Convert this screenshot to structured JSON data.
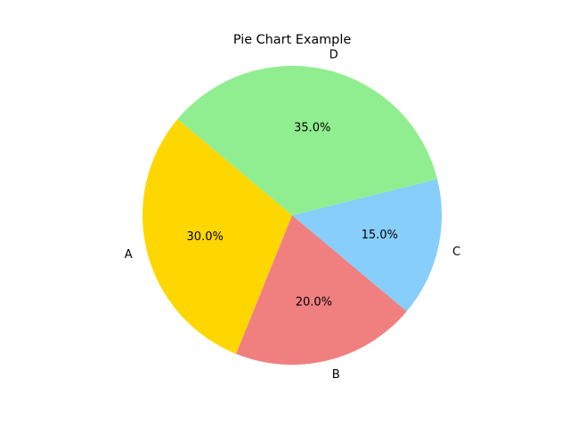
{
  "chart_data": {
    "type": "pie",
    "title": "Pie Chart Example",
    "start_angle_deg": 140,
    "counterclock": true,
    "slices": [
      {
        "label": "A",
        "value": 30.0,
        "pct_label": "30.0%",
        "color": "#ffd700"
      },
      {
        "label": "B",
        "value": 20.0,
        "pct_label": "20.0%",
        "color": "#f08080"
      },
      {
        "label": "C",
        "value": 15.0,
        "pct_label": "15.0%",
        "color": "#87cefa"
      },
      {
        "label": "D",
        "value": 35.0,
        "pct_label": "35.0%",
        "color": "#90ee90"
      }
    ]
  }
}
